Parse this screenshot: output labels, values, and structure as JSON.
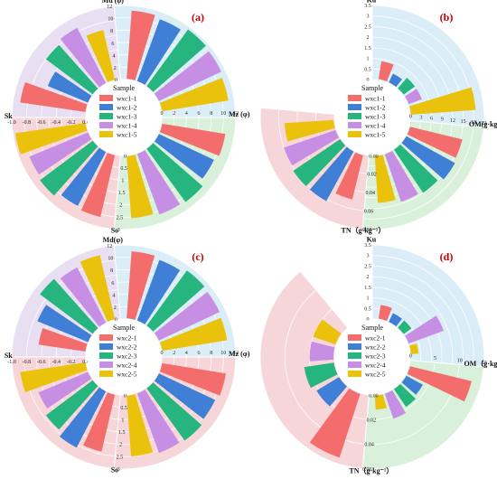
{
  "colors": {
    "series": [
      "#f46d6d",
      "#3f7fd6",
      "#26b57f",
      "#c78fe3",
      "#eac20b"
    ],
    "sector_backgrounds": [
      "#dbeef7",
      "#f7d6d9",
      "#d9f0da",
      "#e8dff2"
    ]
  },
  "chart_data": [
    {
      "type": "polar-bar",
      "panel_label": "(a)",
      "legend_title": "Sample",
      "series_names": [
        "wxc1-1",
        "wxc1-2",
        "wxc1-3",
        "wxc1-4",
        "wxc1-5"
      ],
      "sectors": [
        {
          "label": "Md (φ)",
          "start_deg": -5,
          "end_deg": 90,
          "max": 12,
          "ticks": [
            0,
            2,
            4,
            6,
            8,
            10,
            12
          ],
          "values": [
            11.2,
            10.8,
            11.5,
            11.3,
            11.0
          ],
          "bg": "#dbeef7"
        },
        {
          "label": "Mz (φ)",
          "start_deg": 90,
          "end_deg": 185,
          "max": 12,
          "ticks": [
            0,
            2,
            4,
            6,
            8,
            10,
            12
          ],
          "values": [
            10.5,
            10.0,
            10.8,
            10.6,
            10.2
          ],
          "bg": "#d9f0da"
        },
        {
          "label": "So",
          "start_deg": 185,
          "end_deg": 270,
          "max": 3.0,
          "ticks": [
            0,
            0.5,
            1.0,
            1.5,
            2.0,
            2.5,
            3.0
          ],
          "values": [
            2.6,
            2.5,
            2.7,
            2.6,
            2.9
          ],
          "bg": "#f7d6d9"
        },
        {
          "label": "Sk",
          "start_deg": 270,
          "end_deg": 355,
          "max": 1.0,
          "ticks": [
            "0.0",
            "-0.2",
            "-0.4",
            "-0.6",
            "-0.8",
            "-1.0"
          ],
          "values": [
            0.9,
            0.6,
            0.8,
            0.85,
            0.7
          ],
          "bg": "#e8dff2"
        }
      ]
    },
    {
      "type": "polar-bar",
      "panel_label": "(b)",
      "legend_title": "Sample",
      "series_names": [
        "wxc1-1",
        "wxc1-2",
        "wxc1-3",
        "wxc1-4",
        "wxc1-5"
      ],
      "sectors": [
        {
          "label": "Ku",
          "start_deg": 0,
          "end_deg": 95,
          "max": 3.5,
          "ticks": [
            0,
            0.5,
            1.0,
            1.5,
            2.0,
            2.5,
            3.0,
            3.5
          ],
          "values": [
            0.9,
            0.5,
            0.7,
            0.7,
            3.1
          ],
          "bg": "#dbeef7"
        },
        {
          "label": "OM(g·kg⁻¹)",
          "start_deg": 95,
          "end_deg": 185,
          "max": 21,
          "ticks": [
            0,
            3,
            6,
            9,
            12,
            15,
            18,
            21
          ],
          "values": [
            15.5,
            16.0,
            15.0,
            14.5,
            13.5
          ],
          "bg": "#d9f0da"
        },
        {
          "label": "TN（g·kg⁻¹）",
          "start_deg": 185,
          "end_deg": 275,
          "max": 0.08,
          "ticks": [
            "0.00",
            "0.02",
            "0.04",
            "0.06",
            "0.08"
          ],
          "values": [
            0.05,
            0.062,
            0.062,
            0.06,
            0.054
          ],
          "bg": "#f7d6d9"
        }
      ]
    },
    {
      "type": "polar-bar",
      "panel_label": "(c)",
      "legend_title": "Sample",
      "series_names": [
        "wxc2-1",
        "wxc2-2",
        "wxc2-3",
        "wxc2-4",
        "wxc2-5"
      ],
      "sectors": [
        {
          "label": "Md(φ)",
          "start_deg": -5,
          "end_deg": 90,
          "max": 12,
          "ticks": [
            0,
            2,
            4,
            6,
            8,
            10,
            12
          ],
          "values": [
            11.0,
            10.6,
            11.2,
            11.0,
            10.8
          ],
          "bg": "#dbeef7"
        },
        {
          "label": "Mz (φ)",
          "start_deg": 90,
          "end_deg": 185,
          "max": 12,
          "ticks": [
            0,
            2,
            4,
            6,
            8,
            10,
            12
          ],
          "values": [
            10.6,
            10.2,
            10.6,
            10.4,
            10.0
          ],
          "bg": "#f7d6d9"
        },
        {
          "label": "So",
          "start_deg": 185,
          "end_deg": 270,
          "max": 3.0,
          "ticks": [
            0,
            0.5,
            1.0,
            1.5,
            2.0,
            2.5,
            3.0
          ],
          "values": [
            2.4,
            2.6,
            2.4,
            2.2,
            2.7
          ],
          "bg": "#f7d6d9"
        },
        {
          "label": "Sk",
          "start_deg": 270,
          "end_deg": 355,
          "max": 1.0,
          "ticks": [
            "0.0",
            "-0.2",
            "-0.4",
            "-0.6",
            "-0.8",
            "-1.0"
          ],
          "values": [
            0.65,
            0.75,
            0.9,
            0.85,
            0.9
          ],
          "bg": "#e8dff2"
        }
      ]
    },
    {
      "type": "polar-bar",
      "panel_label": "(d)",
      "legend_title": "Sample",
      "series_names": [
        "wxc2-1",
        "wxc2-2",
        "wxc2-3",
        "wxc2-4",
        "wxc2-5"
      ],
      "sectors": [
        {
          "label": "Ku",
          "start_deg": 0,
          "end_deg": 95,
          "max": 3.5,
          "ticks": [
            0,
            0.5,
            1.0,
            1.5,
            2.0,
            2.5,
            3.0,
            3.5
          ],
          "values": [
            0.7,
            0.5,
            0.5,
            1.8,
            0.4
          ],
          "bg": "#dbeef7"
        },
        {
          "label": "OM（g·kg⁻¹）",
          "start_deg": 95,
          "end_deg": 185,
          "max": 15,
          "ticks": [
            0,
            5,
            10,
            15
          ],
          "values": [
            13.0,
            4.0,
            4.5,
            5.5,
            3.0
          ],
          "bg": "#d9f0da"
        },
        {
          "label": "TN（g·kg⁻¹）",
          "start_deg": 185,
          "end_deg": 320,
          "max": 0.06,
          "ticks": [
            "0.00",
            "0.02",
            "0.04",
            "0.06"
          ],
          "values": [
            0.055,
            0.022,
            0.025,
            0.02,
            0.02
          ],
          "bg": "#f7d6d9"
        }
      ]
    }
  ]
}
